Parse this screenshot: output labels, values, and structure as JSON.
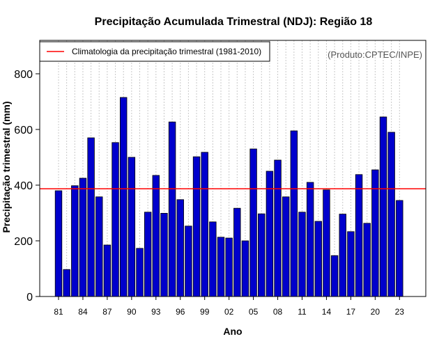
{
  "chart_data": {
    "type": "bar",
    "title": "Precipitação Acumulada Trimestral (NDJ): Região 18",
    "xlabel": "Ano",
    "ylabel": "Precipitação trimestral (mm)",
    "ylim": [
      0,
      920
    ],
    "yticks": [
      0,
      200,
      400,
      600,
      800
    ],
    "xtick_labels": [
      "81",
      "84",
      "87",
      "90",
      "93",
      "96",
      "99",
      "02",
      "05",
      "08",
      "11",
      "14",
      "17",
      "20",
      "23"
    ],
    "categories": [
      "1981",
      "1982",
      "1983",
      "1984",
      "1985",
      "1986",
      "1987",
      "1988",
      "1989",
      "1990",
      "1991",
      "1992",
      "1993",
      "1994",
      "1995",
      "1996",
      "1997",
      "1998",
      "1999",
      "2000",
      "2001",
      "2002",
      "2003",
      "2004",
      "2005",
      "2006",
      "2007",
      "2008",
      "2009",
      "2010",
      "2011",
      "2012",
      "2013",
      "2014",
      "2015",
      "2016",
      "2017",
      "2018",
      "2019",
      "2020",
      "2021",
      "2022",
      "2023"
    ],
    "values": [
      380,
      97,
      398,
      425,
      570,
      358,
      185,
      553,
      715,
      500,
      173,
      303,
      435,
      299,
      627,
      348,
      253,
      502,
      518,
      268,
      213,
      210,
      317,
      200,
      530,
      297,
      450,
      490,
      358,
      595,
      303,
      410,
      270,
      383,
      147,
      296,
      233,
      438,
      263,
      455,
      645,
      590,
      345
    ],
    "bar_color": "#0000cc",
    "reference_line": {
      "label": "Climatologia da precipitação trimestral (1981-2010)",
      "value": 387,
      "color": "#ff0000"
    },
    "legend_position": "top-left",
    "grid": "vertical-dotted"
  },
  "source_note": "(Produto:CPTEC/INPE)"
}
